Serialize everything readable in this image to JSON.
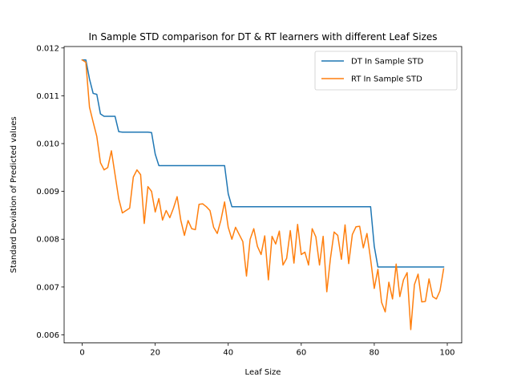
{
  "chart_data": {
    "type": "line",
    "title": "In Sample STD comparison for DT & RT learners with different Leaf Sizes",
    "xlabel": "Leaf Size",
    "ylabel": "Standard Deviation of Predicted values",
    "xlim": [
      -4.95,
      103.95
    ],
    "ylim": [
      0.00583,
      0.01203
    ],
    "xticks": [
      0,
      20,
      40,
      60,
      80,
      100
    ],
    "yticks": [
      0.006,
      0.007,
      0.008,
      0.009,
      0.01,
      0.011,
      0.012
    ],
    "ytick_labels": [
      "0.006",
      "0.007",
      "0.008",
      "0.009",
      "0.010",
      "0.011",
      "0.012"
    ],
    "legend_position": "top-right",
    "grid": false,
    "series": [
      {
        "name": "DT In Sample STD",
        "color": "#1f77b4",
        "x": [
          0,
          1,
          2,
          3,
          4,
          5,
          6,
          7,
          8,
          9,
          10,
          11,
          12,
          13,
          14,
          15,
          16,
          17,
          18,
          19,
          20,
          21,
          22,
          23,
          24,
          25,
          26,
          27,
          28,
          29,
          30,
          31,
          32,
          33,
          34,
          35,
          36,
          37,
          38,
          39,
          40,
          41,
          42,
          43,
          44,
          45,
          46,
          47,
          48,
          49,
          50,
          51,
          52,
          53,
          54,
          55,
          56,
          57,
          58,
          59,
          60,
          61,
          62,
          63,
          64,
          65,
          66,
          67,
          68,
          69,
          70,
          71,
          72,
          73,
          74,
          75,
          76,
          77,
          78,
          79,
          80,
          81,
          82,
          83,
          84,
          85,
          86,
          87,
          88,
          89,
          90,
          91,
          92,
          93,
          94,
          95,
          96,
          97,
          98,
          99
        ],
        "values": [
          0.01175,
          0.01175,
          0.01135,
          0.01105,
          0.01103,
          0.01062,
          0.01057,
          0.01057,
          0.01057,
          0.01057,
          0.01025,
          0.01024,
          0.01024,
          0.01024,
          0.01024,
          0.01024,
          0.01024,
          0.01024,
          0.01024,
          0.01023,
          0.00978,
          0.00954,
          0.00954,
          0.00954,
          0.00954,
          0.00954,
          0.00954,
          0.00954,
          0.00954,
          0.00954,
          0.00954,
          0.00954,
          0.00954,
          0.00954,
          0.00954,
          0.00954,
          0.00954,
          0.00954,
          0.00954,
          0.00954,
          0.00895,
          0.00868,
          0.00868,
          0.00868,
          0.00868,
          0.00868,
          0.00868,
          0.00868,
          0.00868,
          0.00868,
          0.00868,
          0.00868,
          0.00868,
          0.00868,
          0.00868,
          0.00868,
          0.00868,
          0.00868,
          0.00868,
          0.00868,
          0.00868,
          0.00868,
          0.00868,
          0.00868,
          0.00868,
          0.00868,
          0.00868,
          0.00868,
          0.00868,
          0.00868,
          0.00868,
          0.00868,
          0.00868,
          0.00868,
          0.00868,
          0.00868,
          0.00868,
          0.00868,
          0.00868,
          0.00868,
          0.00785,
          0.00742,
          0.00742,
          0.00742,
          0.00742,
          0.00742,
          0.00742,
          0.00742,
          0.00742,
          0.00742,
          0.00742,
          0.00742,
          0.00742,
          0.00742,
          0.00742,
          0.00742,
          0.00742,
          0.00742,
          0.00742,
          0.00742
        ]
      },
      {
        "name": "RT In Sample STD",
        "color": "#ff7f0e",
        "x": [
          0,
          1,
          2,
          3,
          4,
          5,
          6,
          7,
          8,
          9,
          10,
          11,
          12,
          13,
          14,
          15,
          16,
          17,
          18,
          19,
          20,
          21,
          22,
          23,
          24,
          25,
          26,
          27,
          28,
          29,
          30,
          31,
          32,
          33,
          34,
          35,
          36,
          37,
          38,
          39,
          40,
          41,
          42,
          43,
          44,
          45,
          46,
          47,
          48,
          49,
          50,
          51,
          52,
          53,
          54,
          55,
          56,
          57,
          58,
          59,
          60,
          61,
          62,
          63,
          64,
          65,
          66,
          67,
          68,
          69,
          70,
          71,
          72,
          73,
          74,
          75,
          76,
          77,
          78,
          79,
          80,
          81,
          82,
          83,
          84,
          85,
          86,
          87,
          88,
          89,
          90,
          91,
          92,
          93,
          94,
          95,
          96,
          97,
          98,
          99
        ],
        "values": [
          0.01175,
          0.0117,
          0.01076,
          0.01045,
          0.01015,
          0.0096,
          0.00945,
          0.0095,
          0.00985,
          0.00935,
          0.00885,
          0.00855,
          0.0086,
          0.00865,
          0.0093,
          0.00945,
          0.00935,
          0.00833,
          0.0091,
          0.009,
          0.00857,
          0.00885,
          0.0084,
          0.0086,
          0.00845,
          0.00865,
          0.00889,
          0.0084,
          0.00808,
          0.00839,
          0.00822,
          0.0082,
          0.00873,
          0.00874,
          0.00868,
          0.0086,
          0.00825,
          0.00812,
          0.0084,
          0.00878,
          0.00825,
          0.008,
          0.00825,
          0.0081,
          0.00795,
          0.00723,
          0.008,
          0.00822,
          0.00785,
          0.00768,
          0.00807,
          0.00715,
          0.00806,
          0.0079,
          0.00817,
          0.00746,
          0.0076,
          0.00818,
          0.0075,
          0.00831,
          0.00768,
          0.00773,
          0.00746,
          0.00822,
          0.00805,
          0.00746,
          0.00806,
          0.0069,
          0.0076,
          0.00815,
          0.00808,
          0.00758,
          0.0083,
          0.00749,
          0.0081,
          0.00826,
          0.00827,
          0.00782,
          0.00812,
          0.00758,
          0.00697,
          0.00737,
          0.00668,
          0.00648,
          0.0071,
          0.00675,
          0.00748,
          0.0068,
          0.00715,
          0.0073,
          0.00611,
          0.00705,
          0.00727,
          0.00669,
          0.0067,
          0.00717,
          0.0068,
          0.00675,
          0.00692,
          0.00738
        ]
      }
    ]
  }
}
